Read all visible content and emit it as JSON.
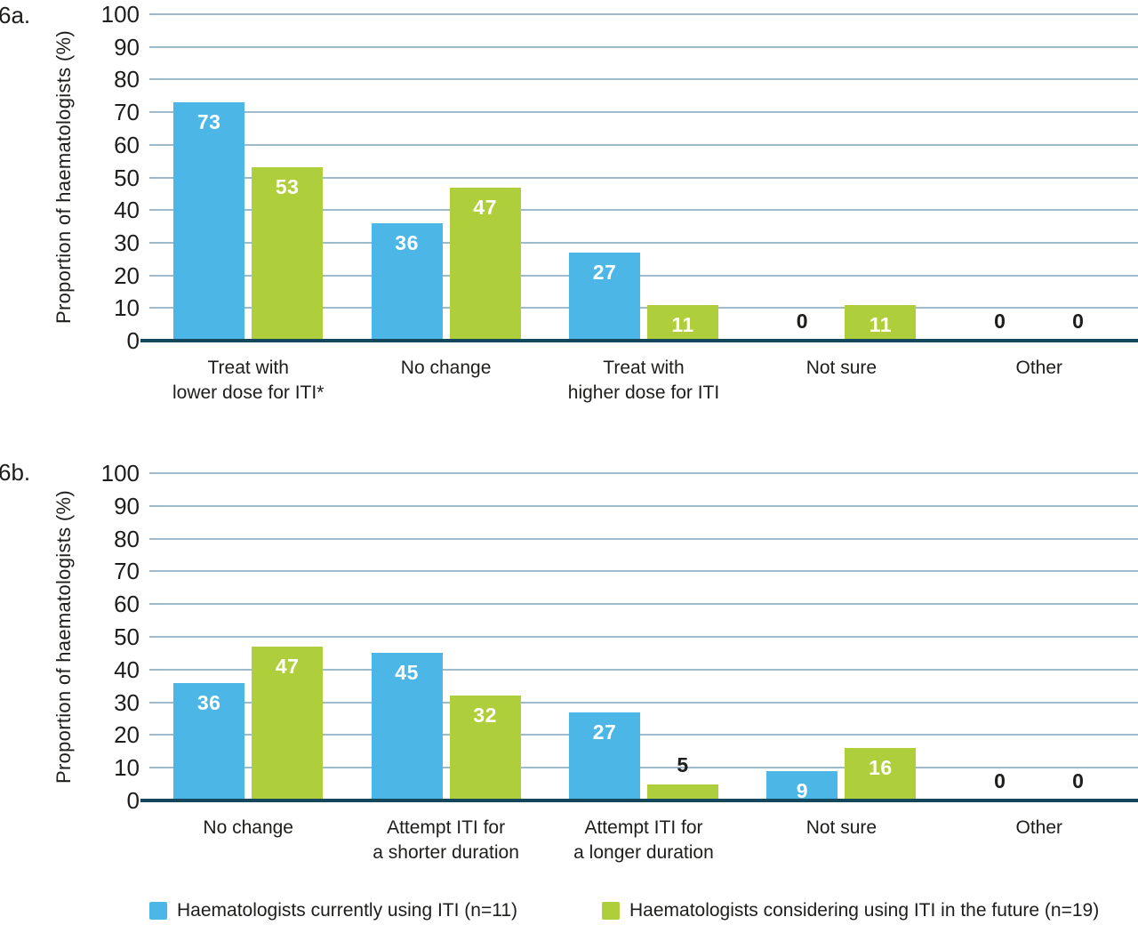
{
  "colors": {
    "series_blue": "#4CB6E7",
    "series_green": "#AECE3B",
    "axis_line": "#14465C",
    "gridline": "#9FBACB",
    "text": "#1D1D1B",
    "value_label_on_bar": "#FFFFFF"
  },
  "chart_data": [
    {
      "type": "bar",
      "panel_label": "6a.",
      "ylabel": "Proportion of haematologists (%)",
      "xlabel": "",
      "ylim": [
        0,
        100
      ],
      "ytick_step": 10,
      "grid": true,
      "legend_position": "bottom",
      "categories": [
        [
          "Treat with",
          "lower dose for ITI*"
        ],
        [
          "No change"
        ],
        [
          "Treat with",
          "higher dose for ITI"
        ],
        [
          "Not sure"
        ],
        [
          "Other"
        ]
      ],
      "series": [
        {
          "name": "Haematologists currently using ITI (n=11)",
          "color": "#4CB6E7",
          "values": [
            73,
            36,
            27,
            0,
            0
          ]
        },
        {
          "name": "Haematologists considering using ITI in the future (n=19)",
          "color": "#AECE3B",
          "values": [
            53,
            47,
            11,
            11,
            0
          ]
        }
      ]
    },
    {
      "type": "bar",
      "panel_label": "6b.",
      "ylabel": "Proportion of haematologists (%)",
      "xlabel": "",
      "ylim": [
        0,
        100
      ],
      "ytick_step": 10,
      "grid": true,
      "legend_position": "bottom",
      "categories": [
        [
          "No change"
        ],
        [
          "Attempt ITI for",
          "a shorter duration"
        ],
        [
          "Attempt ITI for",
          "a longer duration"
        ],
        [
          "Not sure"
        ],
        [
          "Other"
        ]
      ],
      "series": [
        {
          "name": "Haematologists currently using ITI (n=11)",
          "color": "#4CB6E7",
          "values": [
            36,
            45,
            27,
            9,
            0
          ]
        },
        {
          "name": "Haematologists considering using ITI in the future (n=19)",
          "color": "#AECE3B",
          "values": [
            47,
            32,
            5,
            16,
            0
          ]
        }
      ]
    }
  ],
  "legend": {
    "items": [
      {
        "label": "Haematologists currently using ITI (n=11)",
        "color": "#4CB6E7",
        "swatch": "blue-square"
      },
      {
        "label": "Haematologists considering using ITI in the future (n=19)",
        "color": "#AECE3B",
        "swatch": "green-square"
      }
    ]
  }
}
